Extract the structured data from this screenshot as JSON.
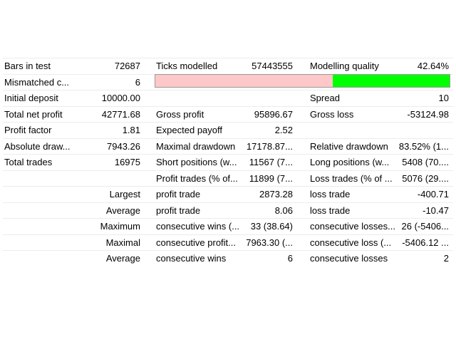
{
  "report": {
    "rows": [
      [
        "Bars in test",
        "72687",
        "Ticks modelled",
        "57443555",
        "Modelling quality",
        "42.64%"
      ],
      [
        "Mismatched c...",
        "6",
        null,
        null,
        null,
        null
      ],
      [
        "Initial deposit",
        "10000.00",
        null,
        null,
        "Spread",
        "10"
      ],
      [
        "Total net profit",
        "42771.68",
        "Gross profit",
        "95896.67",
        "Gross loss",
        "-53124.98"
      ],
      [
        "Profit factor",
        "1.81",
        "Expected payoff",
        "2.52",
        null,
        null
      ],
      [
        "Absolute draw...",
        "7943.26",
        "Maximal drawdown",
        "17178.87...",
        "Relative drawdown",
        "83.52% (1..."
      ],
      [
        "Total trades",
        "16975",
        "Short positions (w...",
        "11567 (7...",
        "Long positions (w...",
        "5408 (70...."
      ],
      [
        null,
        null,
        "Profit trades (% of...",
        "11899 (7...",
        "Loss trades (% of ...",
        "5076 (29...."
      ],
      [
        null,
        "Largest",
        "profit trade",
        "2873.28",
        "loss trade",
        "-400.71"
      ],
      [
        null,
        "Average",
        "profit trade",
        "8.06",
        "loss trade",
        "-10.47"
      ],
      [
        null,
        "Maximum",
        "consecutive wins (...",
        "33 (38.64)",
        "consecutive losses...",
        "26 (-5406..."
      ],
      [
        null,
        "Maximal",
        "consecutive profit...",
        "7963.30 (...",
        "consecutive loss (...",
        "-5406.12 ..."
      ],
      [
        null,
        "Average",
        "consecutive wins",
        "6",
        "consecutive losses",
        "2"
      ]
    ]
  }
}
